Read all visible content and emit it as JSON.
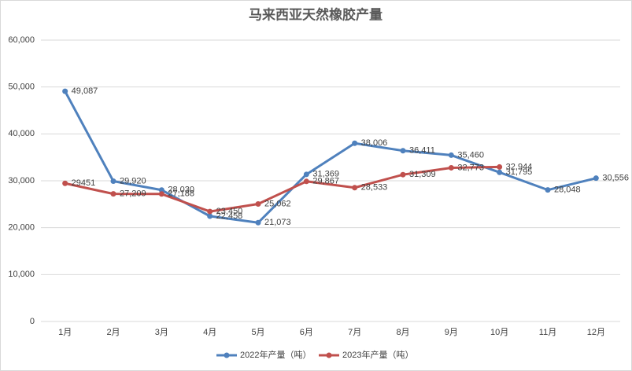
{
  "chart_data": {
    "type": "line",
    "title": "马来西亚天然橡胶产量",
    "categories": [
      "1月",
      "2月",
      "3月",
      "4月",
      "5月",
      "6月",
      "7月",
      "8月",
      "9月",
      "10月",
      "11月",
      "12月"
    ],
    "series": [
      {
        "name": "2022年产量（吨）",
        "color": "#4f81bd",
        "values": [
          49087,
          29920,
          28030,
          22458,
          21073,
          31369,
          38006,
          36411,
          35460,
          31795,
          28048,
          30556
        ],
        "value_labels": [
          "49,087",
          "29,920",
          "28,030",
          "22,458",
          "21,073",
          "31,369",
          "38,006",
          "36,411",
          "35,460",
          "31,795",
          "28,048",
          "30,556"
        ]
      },
      {
        "name": "2023年产量（吨）",
        "color": "#c0504d",
        "values": [
          29451,
          27209,
          27188,
          23450,
          25062,
          29867,
          28533,
          31309,
          32773,
          32944,
          null,
          null
        ],
        "value_labels": [
          "29451",
          "27,209",
          "27,188",
          "23,450",
          "25,062",
          "29,867",
          "28,533",
          "31,309",
          "32,773",
          "32,944",
          null,
          null
        ]
      }
    ],
    "ylim": [
      0,
      60000
    ],
    "yticks": [
      0,
      {
        "value": 10000,
        "label": "10,000"
      },
      {
        "value": 20000,
        "label": "20,000"
      },
      {
        "value": 30000,
        "label": "30,000"
      },
      {
        "value": 40000,
        "label": "40,000"
      },
      {
        "value": 50000,
        "label": "50,000"
      },
      {
        "value": 60000,
        "label": "60,000"
      }
    ],
    "grid": true,
    "legend": "bottom"
  }
}
